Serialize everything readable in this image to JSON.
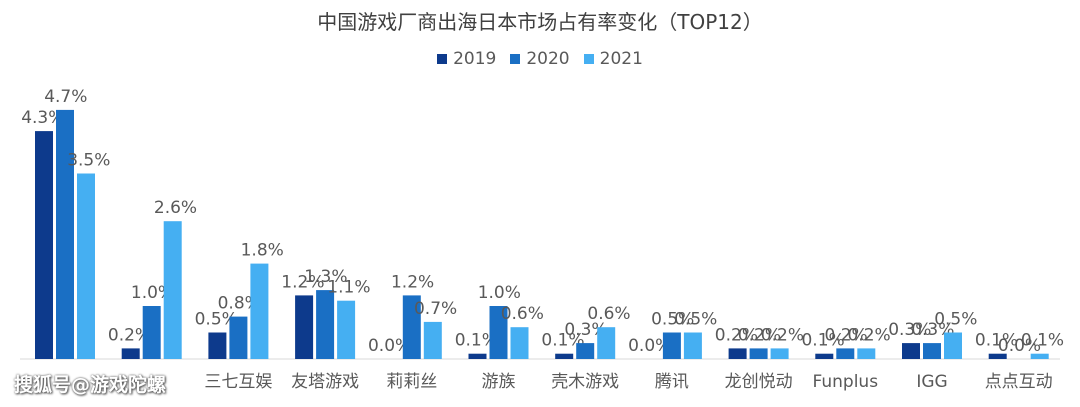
{
  "chart_data": {
    "type": "bar",
    "title": "中国游戏厂商出海日本市场占有率变化（TOP12）",
    "categories": [
      "",
      "",
      "三七互娱",
      "友塔游戏",
      "莉莉丝",
      "游族",
      "壳木游戏",
      "腾讯",
      "龙创悦动",
      "Funplus",
      "IGG",
      "点点互动"
    ],
    "series": [
      {
        "name": "2019",
        "color": "#0d3a8c",
        "values": [
          4.3,
          0.2,
          0.5,
          1.2,
          0.0,
          0.1,
          0.1,
          0.0,
          0.2,
          0.1,
          0.3,
          0.1
        ],
        "labels": [
          "4.3%",
          "0.2%",
          "0.5%",
          "1.2%",
          "0.0%",
          "0.1%",
          "0.1%",
          "0.0%",
          "0.2%",
          "0.1%",
          "0.3%",
          "0.1%"
        ]
      },
      {
        "name": "2020",
        "color": "#1a6fc4",
        "values": [
          4.7,
          1.0,
          0.8,
          1.3,
          1.2,
          1.0,
          0.3,
          0.5,
          0.2,
          0.2,
          0.3,
          0.0
        ],
        "labels": [
          "4.7%",
          "1.0%",
          "0.8%",
          "1.3%",
          "1.2%",
          "1.0%",
          "0.3%",
          "0.5%",
          "0.2%",
          "0.2%",
          "0.3%",
          "0.0%"
        ]
      },
      {
        "name": "2021",
        "color": "#45aff2",
        "values": [
          3.5,
          2.6,
          1.8,
          1.1,
          0.7,
          0.6,
          0.6,
          0.5,
          0.2,
          0.2,
          0.5,
          0.1
        ],
        "labels": [
          "3.5%",
          "2.6%",
          "1.8%",
          "1.1%",
          "0.7%",
          "0.6%",
          "0.6%",
          "0.5%",
          "0.2%",
          "0.2%",
          "0.5%",
          "0.1%"
        ]
      }
    ],
    "ylim": [
      0,
      5
    ],
    "grid": false,
    "legend_position": "top-center",
    "watermark": "搜狐号@游戏陀螺"
  }
}
